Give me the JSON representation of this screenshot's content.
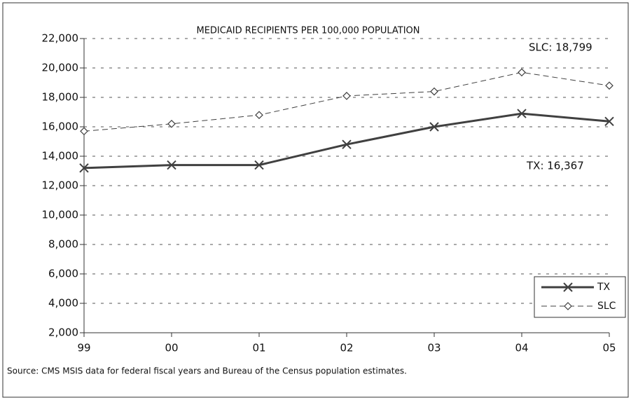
{
  "chart_data": {
    "type": "line",
    "title": "MEDICAID RECIPIENTS PER 100,000 POPULATION",
    "source": "Source:  CMS MSIS data for federal fiscal years and Bureau of the Census population estimates.",
    "annotations": [
      "SLC: 18,799",
      "TX: 16,367"
    ],
    "categories": [
      "99",
      "00",
      "01",
      "02",
      "03",
      "04",
      "05"
    ],
    "series": [
      {
        "name": "TX",
        "color": "#404040",
        "values": [
          13200,
          13400,
          13400,
          14800,
          16000,
          16900,
          16367
        ]
      },
      {
        "name": "SLC",
        "color": "#404040",
        "values": [
          15700,
          16200,
          16800,
          18100,
          18400,
          19700,
          18799
        ]
      }
    ],
    "ylim": [
      2000,
      22000
    ],
    "yticks": [
      {
        "value": 2000,
        "label": "2,000"
      },
      {
        "value": 4000,
        "label": "4,000"
      },
      {
        "value": 6000,
        "label": "6,000"
      },
      {
        "value": 8000,
        "label": "8,000"
      },
      {
        "value": 10000,
        "label": "10,000"
      },
      {
        "value": 12000,
        "label": "12,000"
      },
      {
        "value": 14000,
        "label": "14,000"
      },
      {
        "value": 16000,
        "label": "16,000"
      },
      {
        "value": 18000,
        "label": "18,000"
      },
      {
        "value": 20000,
        "label": "20,000"
      },
      {
        "value": 22000,
        "label": "22,000"
      }
    ],
    "grid": true,
    "legend": "lower right"
  }
}
